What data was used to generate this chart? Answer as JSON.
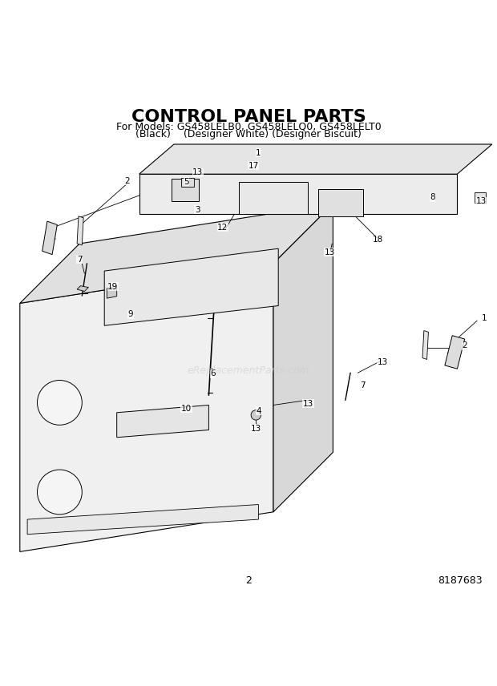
{
  "title": "CONTROL PANEL PARTS",
  "subtitle_line1": "For Models: GS458LELB0, GS458LELQ0, GS458LELT0",
  "subtitle_line2": "(Black)    (Designer White) (Designer Biscuit)",
  "page_number": "2",
  "doc_number": "8187683",
  "watermark": "eReplacementParts.com",
  "background_color": "#ffffff",
  "line_color": "#000000",
  "title_fontsize": 16,
  "subtitle_fontsize": 9,
  "label_fontsize": 9,
  "footer_fontsize": 9
}
